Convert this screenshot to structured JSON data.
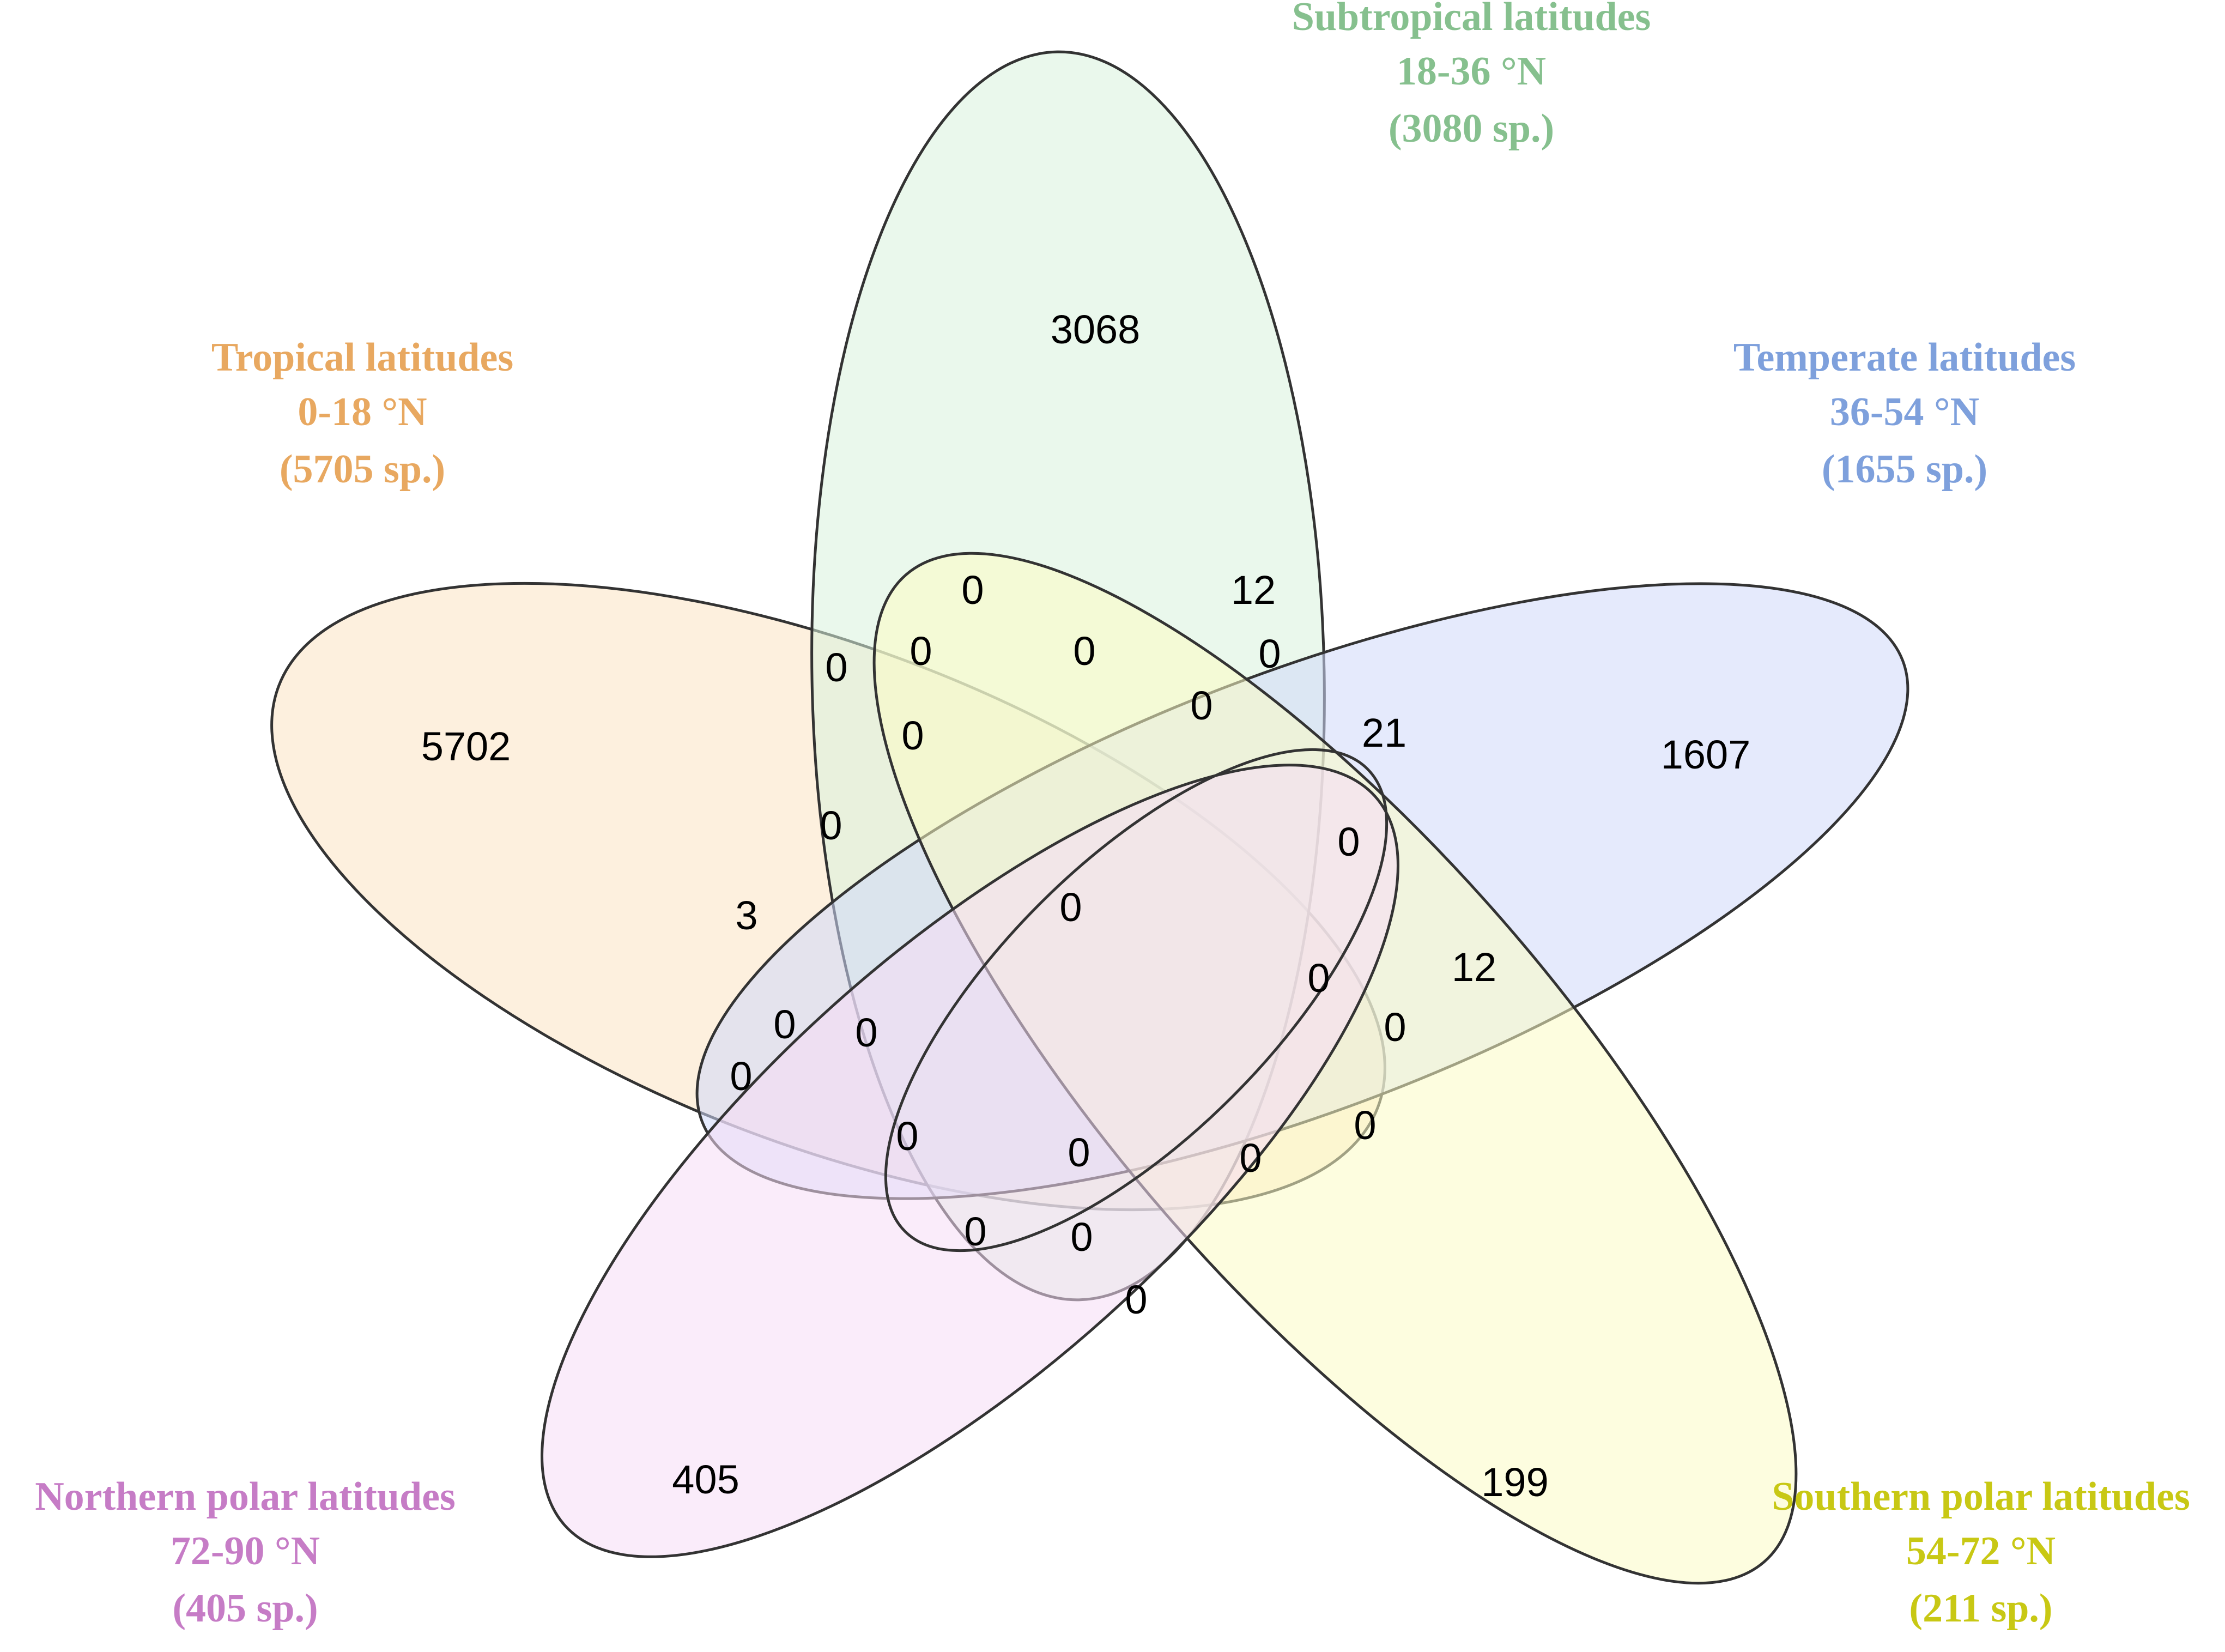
{
  "sets": [
    {
      "key": "tropical",
      "name": "Tropical latitudes",
      "range": "0-18 °N",
      "species": "(5705 sp.)",
      "label_color": "#e8a860",
      "fill": "#fbe3c2",
      "unique": "5702"
    },
    {
      "key": "subtropical",
      "name": "Subtropical latitudes",
      "range": "18-36 °N",
      "species": "(3080 sp.)",
      "label_color": "#86c08e",
      "fill": "#d8f2dc",
      "unique": "3068"
    },
    {
      "key": "temperate",
      "name": "Temperate latitudes",
      "range": "36-54 °N",
      "species": "(1655 sp.)",
      "label_color": "#7ea0dc",
      "fill": "#cfd9fa",
      "unique": "1607"
    },
    {
      "key": "southern",
      "name": "Southern polar latitudes",
      "range": "54-72 °N",
      "species": "(211 sp.)",
      "label_color": "#c8c814",
      "fill": "#fbfbc4",
      "unique": "199"
    },
    {
      "key": "northern",
      "name": "Northern polar latitudes",
      "range": "72-90 °N",
      "species": "(405 sp.)",
      "label_color": "#c67cc6",
      "fill": "#f6dcf6",
      "unique": "405"
    }
  ],
  "intersections": [
    "0",
    "12",
    "0",
    "0",
    "0",
    "0",
    "0",
    "21",
    "0",
    "0",
    "0",
    "3",
    "0",
    "12",
    "0",
    "0",
    "0",
    "0",
    "0",
    "0",
    "0",
    "0",
    "0",
    "0",
    "0",
    "0"
  ],
  "center": "0"
}
